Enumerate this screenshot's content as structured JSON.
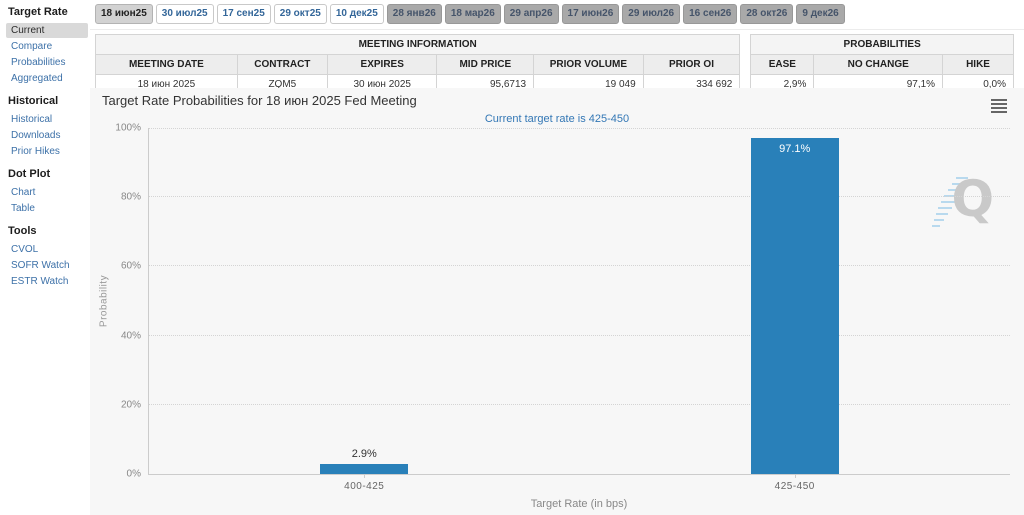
{
  "sidebar": {
    "sections": [
      {
        "heading": "Target Rate",
        "items": [
          {
            "label": "Current",
            "selected": true
          },
          {
            "label": "Compare",
            "selected": false
          },
          {
            "label": "Probabilities",
            "selected": false
          },
          {
            "label": "Aggregated",
            "selected": false
          }
        ]
      },
      {
        "heading": "Historical",
        "items": [
          {
            "label": "Historical",
            "selected": false
          },
          {
            "label": "Downloads",
            "selected": false
          },
          {
            "label": "Prior Hikes",
            "selected": false
          }
        ]
      },
      {
        "heading": "Dot Plot",
        "items": [
          {
            "label": "Chart",
            "selected": false
          },
          {
            "label": "Table",
            "selected": false
          }
        ]
      },
      {
        "heading": "Tools",
        "items": [
          {
            "label": "CVOL",
            "selected": false
          },
          {
            "label": "SOFR Watch",
            "selected": false
          },
          {
            "label": "ESTR Watch",
            "selected": false
          }
        ]
      }
    ]
  },
  "tabs": [
    {
      "label": "18 июн25",
      "state": "selected"
    },
    {
      "label": "30 июл25",
      "state": "active"
    },
    {
      "label": "17 сен25",
      "state": "active"
    },
    {
      "label": "29 окт25",
      "state": "active"
    },
    {
      "label": "10 дек25",
      "state": "active"
    },
    {
      "label": "28 янв26",
      "state": "disabled"
    },
    {
      "label": "18 мар26",
      "state": "disabled"
    },
    {
      "label": "29 апр26",
      "state": "disabled"
    },
    {
      "label": "17 июн26",
      "state": "disabled"
    },
    {
      "label": "29 июл26",
      "state": "disabled"
    },
    {
      "label": "16 сен26",
      "state": "disabled"
    },
    {
      "label": "28 окт26",
      "state": "disabled"
    },
    {
      "label": "9 дек26",
      "state": "disabled"
    }
  ],
  "meeting_info": {
    "title": "MEETING INFORMATION",
    "columns": [
      "MEETING DATE",
      "CONTRACT",
      "EXPIRES",
      "MID PRICE",
      "PRIOR VOLUME",
      "PRIOR OI"
    ],
    "values": [
      "18 июн 2025",
      "ZQM5",
      "30 июн 2025",
      "95,6713",
      "19 049",
      "334 692"
    ]
  },
  "probabilities_table": {
    "title": "PROBABILITIES",
    "columns": [
      "EASE",
      "NO CHANGE",
      "HIKE"
    ],
    "values": [
      "2,9%",
      "97,1%",
      "0,0%"
    ]
  },
  "chart": {
    "title": "Target Rate Probabilities for 18 июн 2025 Fed Meeting",
    "subtitle": "Current target rate is 425-450",
    "menu_icon": "hamburger-menu",
    "watermark_icon": "quikstrike-q-logo"
  },
  "chart_data": {
    "type": "bar",
    "title": "Target Rate Probabilities for 18 июн 2025 Fed Meeting",
    "subtitle": "Current target rate is 425-450",
    "categories": [
      "400-425",
      "425-450"
    ],
    "values": [
      2.9,
      97.1
    ],
    "value_labels": [
      "2.9%",
      "97.1%"
    ],
    "xlabel": "Target Rate (in bps)",
    "ylabel": "Probability",
    "ylim": [
      0,
      100
    ],
    "yticks": [
      "0%",
      "20%",
      "40%",
      "60%",
      "80%",
      "100%"
    ],
    "grid": "horizontal-dotted",
    "legend": "none",
    "bar_color": "#2980b9"
  },
  "colors": {
    "bar_blue": "#2980b9",
    "link_blue": "#336699",
    "subtitle_blue": "#3377b5",
    "selected_tab_bg": "#d2d2d2",
    "disabled_tab_bg": "#a9a9a9",
    "panel_bg": "#f7f7f7"
  }
}
